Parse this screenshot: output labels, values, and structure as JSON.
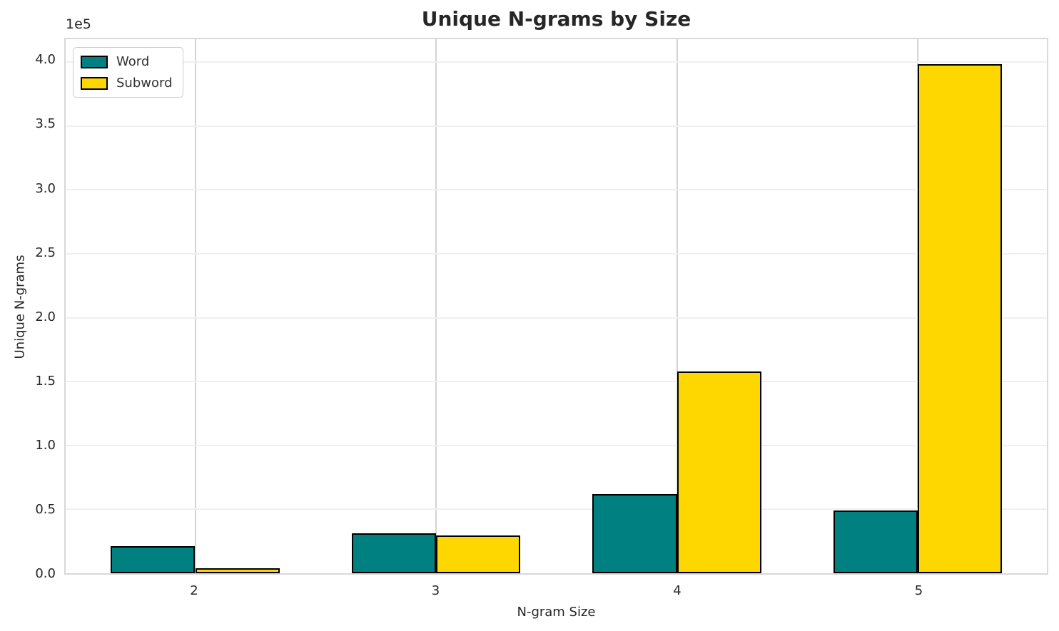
{
  "chart_data": {
    "type": "bar",
    "title": "Unique N-grams by Size",
    "xlabel": "N-gram Size",
    "ylabel": "Unique N-grams",
    "offset_text": "1e5",
    "categories": [
      "2",
      "3",
      "4",
      "5"
    ],
    "series": [
      {
        "name": "Word",
        "color": "#008080",
        "values": [
          21000,
          31000,
          62000,
          49000
        ]
      },
      {
        "name": "Subword",
        "color": "#FFD700",
        "values": [
          3800,
          29500,
          158000,
          398500
        ]
      }
    ],
    "ylim": [
      0,
      418000
    ],
    "yticks": [
      0,
      50000,
      100000,
      150000,
      200000,
      250000,
      300000,
      350000,
      400000
    ],
    "ytick_labels": [
      "0.0",
      "0.5",
      "1.0",
      "1.5",
      "2.0",
      "2.5",
      "3.0",
      "3.5",
      "4.0"
    ],
    "grid": true,
    "legend_position": "upper left",
    "bar_edge_color": "#000000"
  }
}
